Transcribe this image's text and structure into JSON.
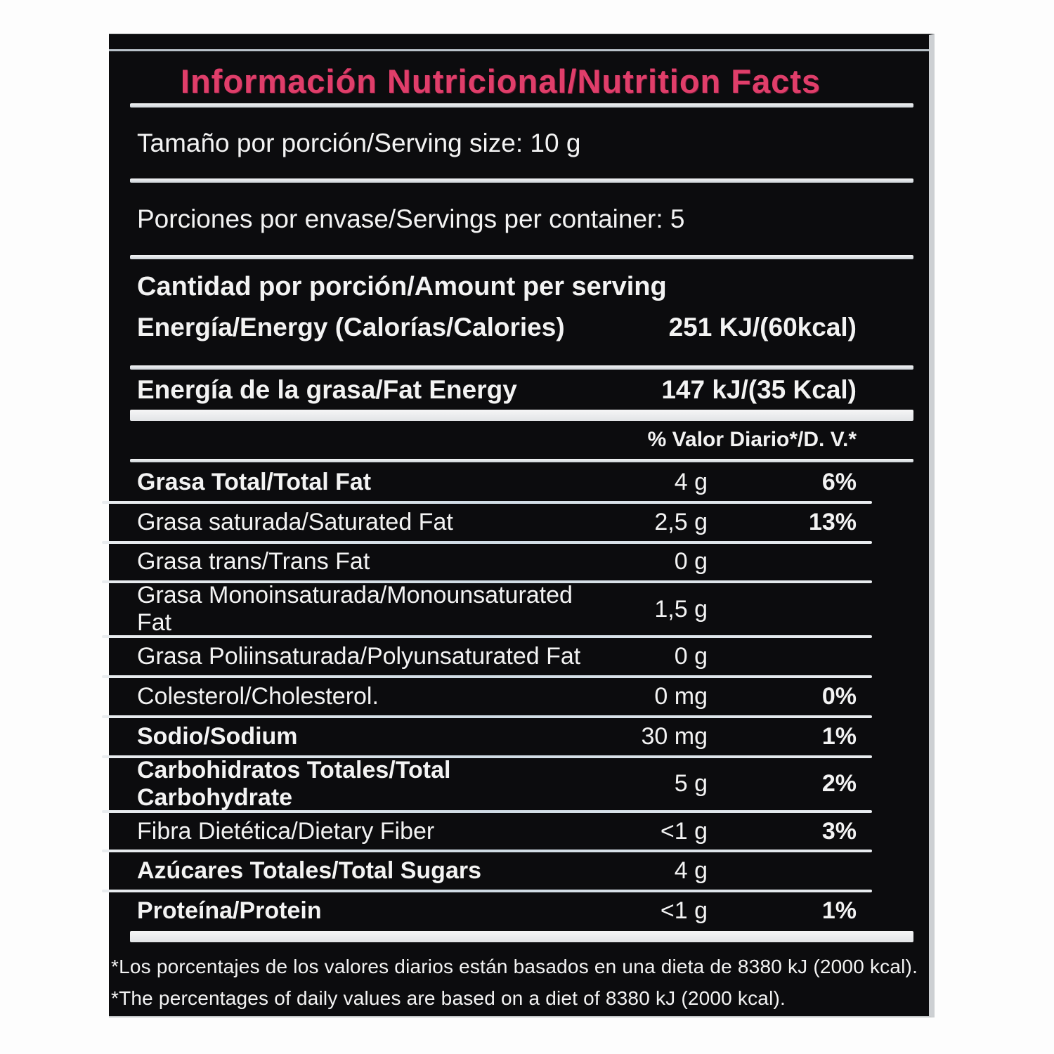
{
  "label": {
    "title": "Información Nutricional/Nutrition Facts",
    "serving_size_row": "Tamaño por porción/Serving size: 10 g",
    "servings_row": "Porciones por envase/Servings per container: 5",
    "amount_header": "Cantidad por porción/Amount per serving",
    "energy_row": {
      "label": "Energía/Energy (Calorías/Calories)",
      "value": "251 KJ/(60kcal)"
    },
    "fat_energy_row": {
      "label": "Energía de la grasa/Fat Energy",
      "value": "147 kJ/(35 Kcal)"
    },
    "daily_value_header": "% Valor Diario*/D. V.*",
    "nutrients": [
      {
        "label": "Grasa Total/Total Fat",
        "amount": "4 g",
        "dv": "6%",
        "bold": true
      },
      {
        "label": "Grasa saturada/Saturated Fat",
        "amount": "2,5 g",
        "dv": "13%",
        "bold": false
      },
      {
        "label": "Grasa trans/Trans Fat",
        "amount": "0 g",
        "dv": "",
        "bold": false
      },
      {
        "label": "Grasa Monoinsaturada/Monounsaturated Fat",
        "amount": "1,5 g",
        "dv": "",
        "bold": false
      },
      {
        "label": "Grasa Poliinsaturada/Polyunsaturated Fat",
        "amount": "0 g",
        "dv": "",
        "bold": false
      },
      {
        "label": "Colesterol/Cholesterol.",
        "amount": "0 mg",
        "dv": "0%",
        "bold": false
      },
      {
        "label": "Sodio/Sodium",
        "amount": "30 mg",
        "dv": "1%",
        "bold": true
      },
      {
        "label": "Carbohidratos Totales/Total Carbohydrate",
        "amount": "5 g",
        "dv": "2%",
        "bold": true
      },
      {
        "label": "Fibra Dietética/Dietary Fiber",
        "amount": "<1 g",
        "dv": "3%",
        "bold": false
      },
      {
        "label": "Azúcares Totales/Total Sugars",
        "amount": "4 g",
        "dv": "",
        "bold": true
      },
      {
        "label": "Proteína/Protein",
        "amount": "<1 g",
        "dv": "1%",
        "bold": true
      }
    ],
    "footnotes": [
      "*Los porcentajes de los valores diarios están basados en una dieta de 8380 kJ (2000 kcal).",
      "*The percentages of daily values are based on a diet of 8380 kJ (2000 kcal)."
    ],
    "colors": {
      "title_pink": "#e03e6a",
      "panel_black": "#0c0c0e",
      "text_white": "#f3f3f3",
      "separator_white": "#e6e9ec"
    }
  }
}
